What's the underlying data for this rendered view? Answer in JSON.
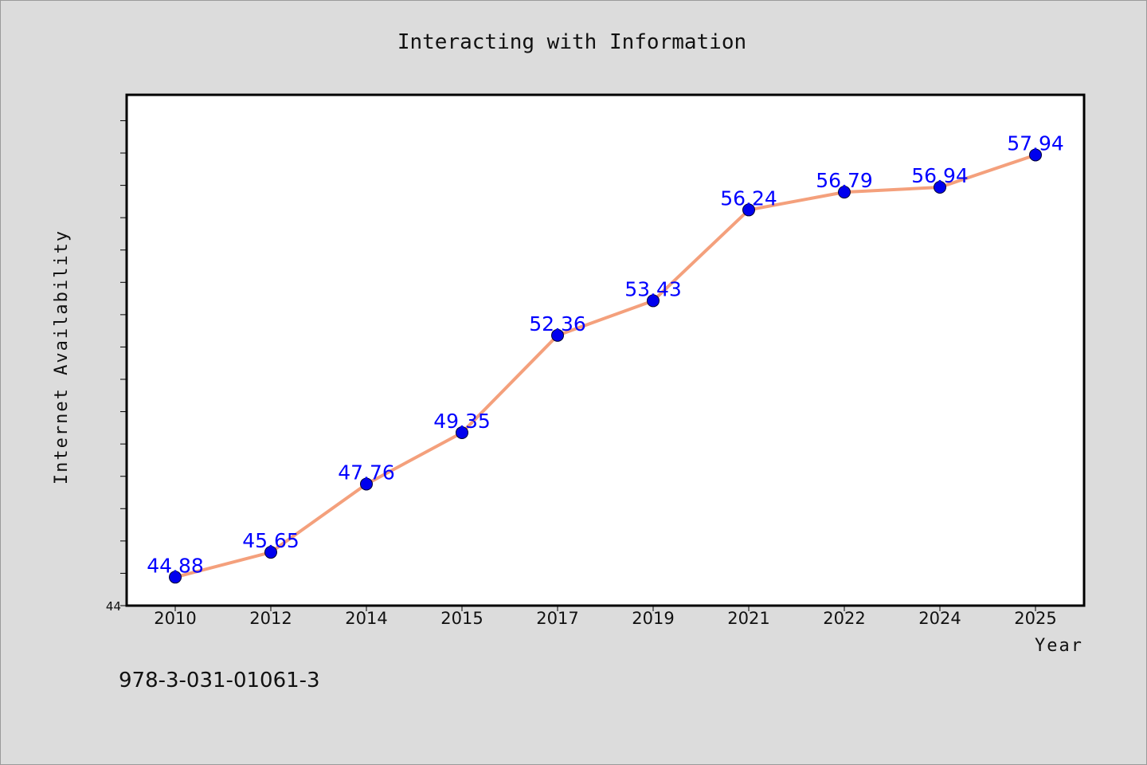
{
  "chart_data": {
    "type": "line",
    "title": "Interacting with Information",
    "xlabel": "Year",
    "ylabel": "Internet Availability",
    "categories": [
      "2010",
      "2012",
      "2014",
      "2015",
      "2017",
      "2019",
      "2021",
      "2022",
      "2024",
      "2025"
    ],
    "series": [
      {
        "values": [
          44.88,
          45.65,
          47.76,
          49.35,
          52.36,
          53.43,
          56.24,
          56.79,
          56.94,
          57.94
        ],
        "line_color": "#f4a07c",
        "marker_color": "#0000ee",
        "label_color": "#0000ff"
      }
    ],
    "ylim": [
      44,
      59.8
    ],
    "ytick_labels": [
      "44"
    ],
    "grid": false,
    "legend": "none"
  },
  "footer": {
    "isbn": "978-3-031-01061-3"
  }
}
